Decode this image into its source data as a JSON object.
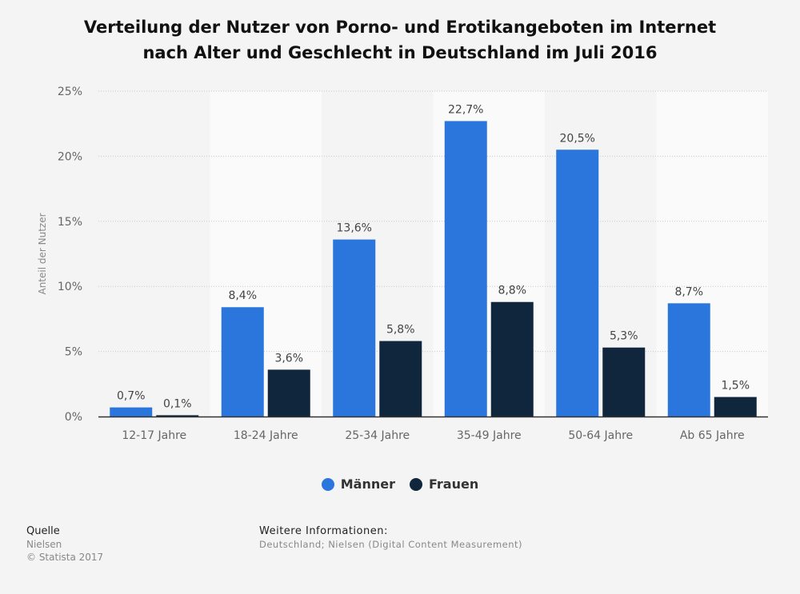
{
  "header": {
    "title_line1": "Verteilung der Nutzer von Porno- und Erotikangeboten im Internet",
    "title_line2": "nach Alter und Geschlecht in Deutschland im Juli 2016"
  },
  "chart_data": {
    "type": "bar",
    "title": "Verteilung der Nutzer von Porno- und Erotikangeboten im Internet nach Alter und Geschlecht in Deutschland im Juli 2016",
    "xlabel": "",
    "ylabel": "Anteil der Nutzer",
    "ylim": [
      0,
      25
    ],
    "yticks": [
      0,
      5,
      10,
      15,
      20,
      25
    ],
    "ytick_labels": [
      "0%",
      "5%",
      "10%",
      "15%",
      "20%",
      "25%"
    ],
    "categories": [
      "12-17 Jahre",
      "18-24 Jahre",
      "25-34 Jahre",
      "35-49 Jahre",
      "50-64 Jahre",
      "Ab 65 Jahre"
    ],
    "series": [
      {
        "name": "Männer",
        "color": "#2a76dd",
        "values": [
          0.7,
          8.4,
          13.6,
          22.7,
          20.5,
          8.7
        ],
        "labels": [
          "0,7%",
          "8,4%",
          "13,6%",
          "22,7%",
          "20,5%",
          "8,7%"
        ]
      },
      {
        "name": "Frauen",
        "color": "#10263d",
        "values": [
          0.1,
          3.6,
          5.8,
          8.8,
          5.3,
          1.5
        ],
        "labels": [
          "0,1%",
          "3,6%",
          "5,8%",
          "8,8%",
          "5,3%",
          "1,5%"
        ]
      }
    ],
    "grid": true,
    "legend_position": "bottom"
  },
  "footer": {
    "source_heading": "Quelle",
    "source_name": "Nielsen",
    "copyright": "© Statista 2017",
    "info_heading": "Weitere Informationen:",
    "info_text": "Deutschland; Nielsen (Digital Content Measurement)"
  }
}
